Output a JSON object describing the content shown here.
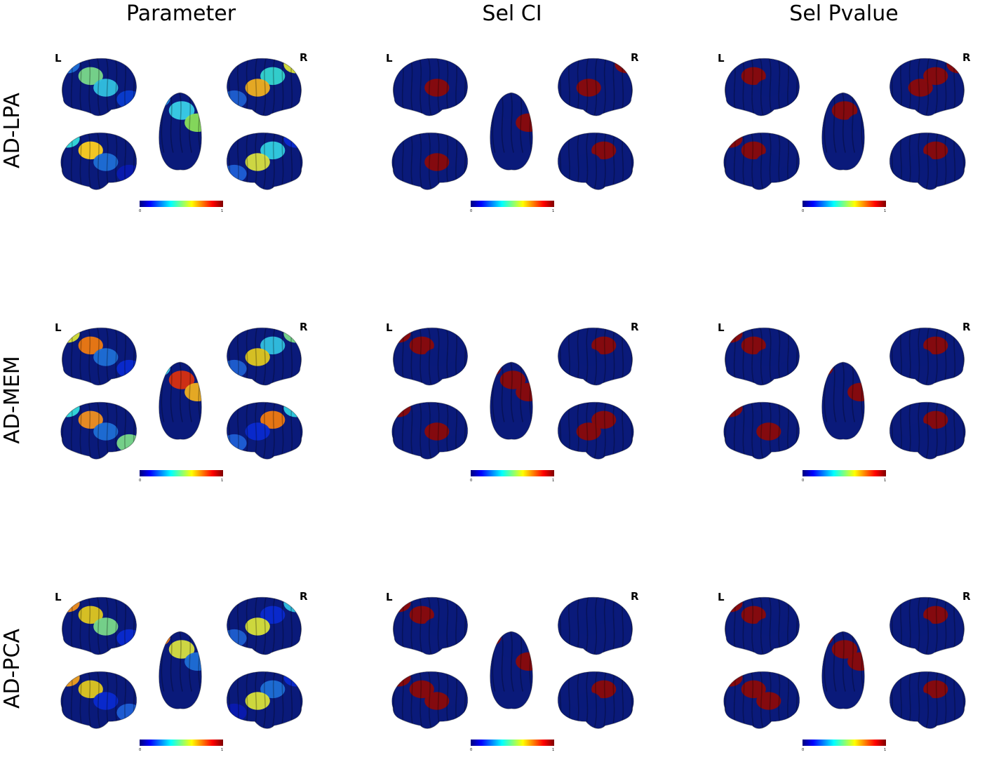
{
  "columns": [
    "Parameter",
    "Sel CI",
    "Sel Pvalue"
  ],
  "rows": [
    "AD-LPA",
    "AD-MEM",
    "AD-PCA"
  ],
  "hemisphere_labels": {
    "left": "L",
    "right": "R"
  },
  "colorbar": {
    "min": "0",
    "max": "1",
    "colormap": "jet"
  },
  "colors": {
    "background_region": "#0a1a7a",
    "selected_region": "#8b0a0a",
    "outline": "#000000"
  },
  "panels": [
    {
      "row": "AD-LPA",
      "col": "Parameter",
      "regions": [
        [
          "#1f6fd6",
          "#7ad98a",
          "#31c1e0",
          "#0a3ccf"
        ],
        [
          "#d8e23a",
          "#35d6d0",
          "#f0b020",
          "#1f5fd0"
        ],
        [
          "#1d89e0",
          "#3ad0e8",
          "#8ae05a",
          "#0a2ad0"
        ],
        [
          "#35dcdc",
          "#ffd020",
          "#1f6fd6",
          "#0a1ab0"
        ],
        [
          "#0a2ad0",
          "#33cfe0",
          "#d8e040",
          "#1f5fd6"
        ]
      ]
    },
    {
      "row": "AD-LPA",
      "col": "Sel CI",
      "regions": [
        [
          "#0a1a7a",
          "#0a1a7a",
          "#8b0a0a",
          "#0a1a7a"
        ],
        [
          "#8b0a0a",
          "#0a1a7a",
          "#8b0a0a",
          "#0a1a7a"
        ],
        [
          "#0a1a7a",
          "#0a1a7a",
          "#8b0a0a",
          "#0a1a7a"
        ],
        [
          "#0a1a7a",
          "#0a1a7a",
          "#8b0a0a",
          "#0a1a7a"
        ],
        [
          "#0a1a7a",
          "#8b0a0a",
          "#0a1a7a",
          "#0a1a7a"
        ]
      ]
    },
    {
      "row": "AD-LPA",
      "col": "Sel Pvalue",
      "regions": [
        [
          "#0a1a7a",
          "#8b0a0a",
          "#0a1a7a",
          "#0a1a7a"
        ],
        [
          "#8b0a0a",
          "#8b0a0a",
          "#8b0a0a",
          "#0a1a7a"
        ],
        [
          "#0a1a7a",
          "#8b0a0a",
          "#0a1a7a",
          "#0a1a7a"
        ],
        [
          "#8b0a0a",
          "#8b0a0a",
          "#0a1a7a",
          "#0a1a7a"
        ],
        [
          "#0a1a7a",
          "#8b0a0a",
          "#0a1a7a",
          "#0a1a7a"
        ]
      ]
    },
    {
      "row": "AD-MEM",
      "col": "Parameter",
      "regions": [
        [
          "#d8e23a",
          "#f07a10",
          "#1f6fd6",
          "#0a2ad0"
        ],
        [
          "#7ad98a",
          "#31c1e0",
          "#e0c820",
          "#1f5fd0"
        ],
        [
          "#3ad0e8",
          "#d83010",
          "#f0b020",
          "#0a2ad0"
        ],
        [
          "#35dcdc",
          "#f09020",
          "#1f6fd6",
          "#7ad98a"
        ],
        [
          "#33cfe0",
          "#f07a10",
          "#0a2ad0",
          "#1f5fd6"
        ]
      ]
    },
    {
      "row": "AD-MEM",
      "col": "Sel CI",
      "regions": [
        [
          "#8b0a0a",
          "#8b0a0a",
          "#0a1a7a",
          "#0a1a7a"
        ],
        [
          "#0a1a7a",
          "#8b0a0a",
          "#0a1a7a",
          "#0a1a7a"
        ],
        [
          "#8b0a0a",
          "#8b0a0a",
          "#8b0a0a",
          "#0a1a7a"
        ],
        [
          "#8b0a0a",
          "#0a1a7a",
          "#8b0a0a",
          "#0a1a7a"
        ],
        [
          "#0a1a7a",
          "#8b0a0a",
          "#8b0a0a",
          "#0a1a7a"
        ]
      ]
    },
    {
      "row": "AD-MEM",
      "col": "Sel Pvalue",
      "regions": [
        [
          "#8b0a0a",
          "#8b0a0a",
          "#0a1a7a",
          "#0a1a7a"
        ],
        [
          "#0a1a7a",
          "#8b0a0a",
          "#0a1a7a",
          "#0a1a7a"
        ],
        [
          "#8b0a0a",
          "#0a1a7a",
          "#8b0a0a",
          "#0a1a7a"
        ],
        [
          "#8b0a0a",
          "#0a1a7a",
          "#8b0a0a",
          "#0a1a7a"
        ],
        [
          "#0a1a7a",
          "#8b0a0a",
          "#0a1a7a",
          "#0a1a7a"
        ]
      ]
    },
    {
      "row": "AD-PCA",
      "col": "Parameter",
      "regions": [
        [
          "#f09020",
          "#e0c820",
          "#7ad98a",
          "#0a2ad0"
        ],
        [
          "#31c1e0",
          "#0a2ad0",
          "#d8e23a",
          "#1f5fd0"
        ],
        [
          "#f07a10",
          "#d8e040",
          "#1f6fd6",
          "#7ad98a"
        ],
        [
          "#f0a020",
          "#e0c820",
          "#0a2ad0",
          "#1f5fd6"
        ],
        [
          "#0a2ad0",
          "#1f6fd6",
          "#d8e23a",
          "#0a1ab0"
        ]
      ]
    },
    {
      "row": "AD-PCA",
      "col": "Sel CI",
      "regions": [
        [
          "#8b0a0a",
          "#8b0a0a",
          "#0a1a7a",
          "#0a1a7a"
        ],
        [
          "#0a1a7a",
          "#0a1a7a",
          "#0a1a7a",
          "#0a1a7a"
        ],
        [
          "#8b0a0a",
          "#0a1a7a",
          "#8b0a0a",
          "#0a1a7a"
        ],
        [
          "#8b0a0a",
          "#8b0a0a",
          "#8b0a0a",
          "#0a1a7a"
        ],
        [
          "#0a1a7a",
          "#8b0a0a",
          "#0a1a7a",
          "#0a1a7a"
        ]
      ]
    },
    {
      "row": "AD-PCA",
      "col": "Sel Pvalue",
      "regions": [
        [
          "#8b0a0a",
          "#8b0a0a",
          "#0a1a7a",
          "#0a1a7a"
        ],
        [
          "#0a1a7a",
          "#8b0a0a",
          "#0a1a7a",
          "#0a1a7a"
        ],
        [
          "#8b0a0a",
          "#8b0a0a",
          "#8b0a0a",
          "#0a1a7a"
        ],
        [
          "#8b0a0a",
          "#8b0a0a",
          "#8b0a0a",
          "#0a1a7a"
        ],
        [
          "#0a1a7a",
          "#8b0a0a",
          "#0a1a7a",
          "#0a1a7a"
        ]
      ]
    }
  ]
}
